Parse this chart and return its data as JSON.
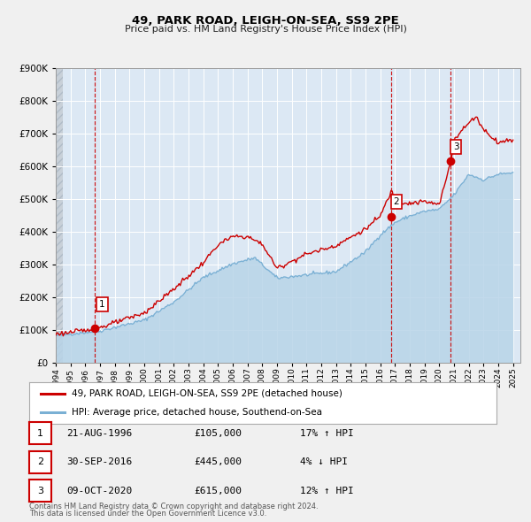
{
  "title": "49, PARK ROAD, LEIGH-ON-SEA, SS9 2PE",
  "subtitle": "Price paid vs. HM Land Registry's House Price Index (HPI)",
  "legend_label1": "49, PARK ROAD, LEIGH-ON-SEA, SS9 2PE (detached house)",
  "legend_label2": "HPI: Average price, detached house, Southend-on-Sea",
  "footer1": "Contains HM Land Registry data © Crown copyright and database right 2024.",
  "footer2": "This data is licensed under the Open Government Licence v3.0.",
  "sale_color": "#cc0000",
  "hpi_color": "#7ab0d4",
  "hpi_fill_color": "#b8d4e8",
  "bg_color": "#f0f0f0",
  "plot_bg": "#dce8f4",
  "hatch_color": "#c8d8e8",
  "grid_color": "#ffffff",
  "vline_color": "#cc0000",
  "sale_points": [
    {
      "date": 1996.64,
      "price": 105000,
      "label": "1"
    },
    {
      "date": 2016.75,
      "price": 445000,
      "label": "2"
    },
    {
      "date": 2020.77,
      "price": 615000,
      "label": "3"
    }
  ],
  "table_rows": [
    {
      "num": "1",
      "date": "21-AUG-1996",
      "price": "£105,000",
      "pct": "17% ↑ HPI"
    },
    {
      "num": "2",
      "date": "30-SEP-2016",
      "price": "£445,000",
      "pct": "4% ↓ HPI"
    },
    {
      "num": "3",
      "date": "09-OCT-2020",
      "price": "£615,000",
      "pct": "12% ↑ HPI"
    }
  ],
  "xmin": 1994.0,
  "xmax": 2025.5,
  "ymin": 0,
  "ymax": 900000,
  "yticks": [
    0,
    100000,
    200000,
    300000,
    400000,
    500000,
    600000,
    700000,
    800000,
    900000
  ],
  "hpi_anchors_x": [
    1994,
    1995,
    1997,
    2000,
    2002,
    2004,
    2006,
    2007.5,
    2009,
    2011,
    2013,
    2015,
    2016,
    2017,
    2018,
    2019,
    2020,
    2021,
    2022,
    2023,
    2024,
    2025
  ],
  "hpi_anchors_y": [
    83000,
    88000,
    97000,
    130000,
    185000,
    260000,
    302000,
    320000,
    258000,
    268000,
    278000,
    338000,
    390000,
    428000,
    448000,
    462000,
    468000,
    512000,
    575000,
    558000,
    575000,
    580000
  ],
  "pp_anchors_x": [
    1994,
    1995,
    1996.5,
    1997,
    1998,
    2000,
    2002,
    2004,
    2005,
    2006,
    2007,
    2008,
    2009,
    2011,
    2013,
    2015,
    2016,
    2016.8,
    2017,
    2018,
    2019,
    2020,
    2020.8,
    2021,
    2022,
    2022.5,
    2023,
    2024,
    2025
  ],
  "pp_anchors_y": [
    88000,
    93000,
    102000,
    108000,
    122000,
    152000,
    225000,
    305000,
    360000,
    385000,
    385000,
    362000,
    288000,
    332000,
    358000,
    408000,
    448000,
    528000,
    492000,
    487000,
    492000,
    482000,
    618000,
    682000,
    732000,
    752000,
    712000,
    672000,
    682000
  ]
}
